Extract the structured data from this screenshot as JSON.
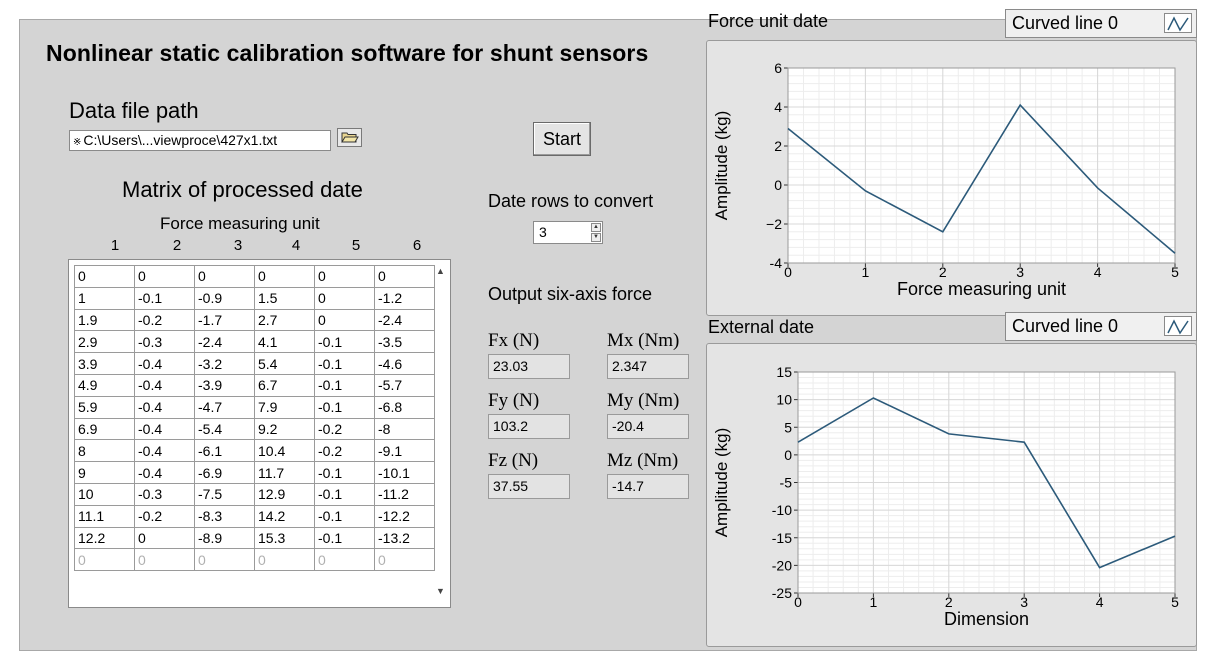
{
  "app": {
    "title": "Nonlinear static calibration software for shunt sensors"
  },
  "file": {
    "label": "Data file path",
    "path": "C:\\Users\\...viewproce\\427x1.txt",
    "browse_icon": "folder-open-icon"
  },
  "matrix": {
    "title": "Matrix of processed date",
    "unit_label": "Force measuring unit",
    "columns": [
      "1",
      "2",
      "3",
      "4",
      "5",
      "6"
    ],
    "rows": [
      [
        "0",
        "0",
        "0",
        "0",
        "0",
        "0"
      ],
      [
        "1",
        "-0.1",
        "-0.9",
        "1.5",
        "0",
        "-1.2"
      ],
      [
        "1.9",
        "-0.2",
        "-1.7",
        "2.7",
        "0",
        "-2.4"
      ],
      [
        "2.9",
        "-0.3",
        "-2.4",
        "4.1",
        "-0.1",
        "-3.5"
      ],
      [
        "3.9",
        "-0.4",
        "-3.2",
        "5.4",
        "-0.1",
        "-4.6"
      ],
      [
        "4.9",
        "-0.4",
        "-3.9",
        "6.7",
        "-0.1",
        "-5.7"
      ],
      [
        "5.9",
        "-0.4",
        "-4.7",
        "7.9",
        "-0.1",
        "-6.8"
      ],
      [
        "6.9",
        "-0.4",
        "-5.4",
        "9.2",
        "-0.2",
        "-8"
      ],
      [
        "8",
        "-0.4",
        "-6.1",
        "10.4",
        "-0.2",
        "-9.1"
      ],
      [
        "9",
        "-0.4",
        "-6.9",
        "11.7",
        "-0.1",
        "-10.1"
      ],
      [
        "10",
        "-0.3",
        "-7.5",
        "12.9",
        "-0.1",
        "-11.2"
      ],
      [
        "11.1",
        "-0.2",
        "-8.3",
        "14.2",
        "-0.1",
        "-12.2"
      ],
      [
        "12.2",
        "0",
        "-8.9",
        "15.3",
        "-0.1",
        "-13.2"
      ],
      [
        "0",
        "0",
        "0",
        "0",
        "0",
        "0"
      ]
    ]
  },
  "controls": {
    "start_label": "Start",
    "rows_label": "Date rows to convert",
    "rows_value": "3"
  },
  "output": {
    "title": "Output six-axis force",
    "fx_label": "Fx (N)",
    "fx_value": "23.03",
    "fy_label": "Fy (N)",
    "fy_value": "103.2",
    "fz_label": "Fz (N)",
    "fz_value": "37.55",
    "mx_label": "Mx (Nm)",
    "mx_value": "2.347",
    "my_label": "My (Nm)",
    "my_value": "-20.4",
    "mz_label": "Mz (Nm)",
    "mz_value": "-14.7"
  },
  "colors": {
    "line": "#2c5a7a",
    "panel": "#d4d4d4",
    "plot_bg": "#ffffff",
    "grid_major": "#d8d8d8",
    "grid_minor": "#ededed"
  },
  "chart_data": [
    {
      "type": "line",
      "title": "Force unit date",
      "legend": "Curved line 0",
      "xlabel": "Force measuring unit",
      "ylabel": "Amplitude (kg)",
      "x": [
        0,
        1,
        2,
        3,
        4,
        5
      ],
      "series": [
        {
          "name": "Curved line 0",
          "values": [
            2.9,
            -0.3,
            -2.4,
            4.1,
            -0.15,
            -3.5
          ]
        }
      ],
      "xlim": [
        0,
        5
      ],
      "ylim": [
        -4,
        6
      ],
      "xticks": [
        0,
        1,
        2,
        3,
        4,
        5
      ],
      "yticks": [
        -4,
        -2,
        0,
        2,
        4,
        6
      ],
      "yticklabels": [
        "-4",
        "−2",
        "0",
        "2",
        "4",
        "6"
      ],
      "grid": true
    },
    {
      "type": "line",
      "title": "External date",
      "legend": "Curved line 0",
      "xlabel": "Dimension",
      "ylabel": "Amplitude (kg)",
      "x": [
        0,
        1,
        2,
        3,
        4,
        5
      ],
      "series": [
        {
          "name": "Curved line 0",
          "values": [
            2.3,
            10.3,
            3.8,
            2.3,
            -20.4,
            -14.7
          ]
        }
      ],
      "xlim": [
        0,
        5
      ],
      "ylim": [
        -25,
        15
      ],
      "xticks": [
        0,
        1,
        2,
        3,
        4,
        5
      ],
      "yticks": [
        -25,
        -20,
        -15,
        -10,
        -5,
        0,
        5,
        10,
        15
      ],
      "yticklabels": [
        "-25",
        "-20",
        "-15",
        "-10",
        "-5",
        "0",
        "5",
        "10",
        "15"
      ],
      "grid": true
    }
  ]
}
